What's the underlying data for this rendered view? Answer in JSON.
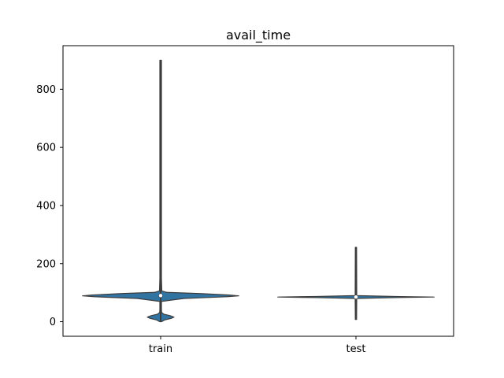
{
  "chart_data": {
    "type": "violin",
    "title": "avail_time",
    "xlabel": "",
    "ylabel": "",
    "categories": [
      "train",
      "test"
    ],
    "ylim": [
      -50,
      950
    ],
    "yticks": [
      0,
      200,
      400,
      600,
      800
    ],
    "grid": false,
    "legend": "none",
    "colors": {
      "body": "#3274a1",
      "edge": "#3d3d3d",
      "inner": "#3d3d3d",
      "median": "#ffffff",
      "frame": "#000000"
    },
    "violins": [
      {
        "category": "train",
        "min": 0,
        "max": 900,
        "q1": 85,
        "median": 90,
        "q3": 95,
        "whisker_low": 75,
        "whisker_high": 105,
        "density_profile": [
          {
            "y": 0,
            "w": 0.01
          },
          {
            "y": 6,
            "w": 0.05
          },
          {
            "y": 12,
            "w": 0.14
          },
          {
            "y": 16,
            "w": 0.17
          },
          {
            "y": 21,
            "w": 0.12
          },
          {
            "y": 26,
            "w": 0.04
          },
          {
            "y": 32,
            "w": 0.012
          },
          {
            "y": 45,
            "w": 0.01
          },
          {
            "y": 70,
            "w": 0.01
          },
          {
            "y": 80,
            "w": 0.3
          },
          {
            "y": 86,
            "w": 0.85
          },
          {
            "y": 89,
            "w": 1.0
          },
          {
            "y": 92,
            "w": 0.88
          },
          {
            "y": 97,
            "w": 0.5
          },
          {
            "y": 101,
            "w": 0.08
          },
          {
            "y": 106,
            "w": 0.015
          },
          {
            "y": 150,
            "w": 0.01
          },
          {
            "y": 900,
            "w": 0.01
          }
        ]
      },
      {
        "category": "test",
        "min": 8,
        "max": 256,
        "q1": 84,
        "median": 85,
        "q3": 87,
        "whisker_low": 10,
        "whisker_high": 172,
        "density_profile": [
          {
            "y": 8,
            "w": 0.008
          },
          {
            "y": 80,
            "w": 0.01
          },
          {
            "y": 83,
            "w": 0.5
          },
          {
            "y": 85,
            "w": 1.0
          },
          {
            "y": 87,
            "w": 0.5
          },
          {
            "y": 90,
            "w": 0.01
          },
          {
            "y": 256,
            "w": 0.008
          }
        ]
      }
    ]
  }
}
